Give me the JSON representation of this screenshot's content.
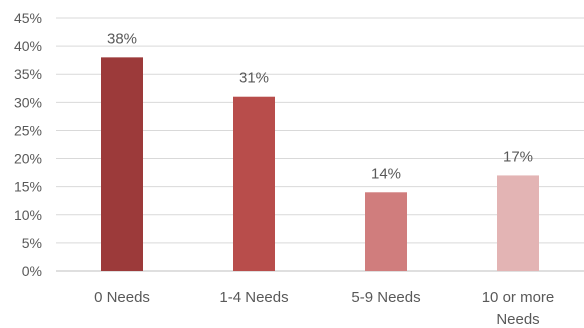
{
  "chart_data": {
    "type": "bar",
    "title": "",
    "xlabel": "",
    "ylabel": "",
    "categories": [
      "0 Needs",
      "1-4 Needs",
      "5-9 Needs",
      "10 or more Needs"
    ],
    "values": [
      38,
      31,
      14,
      17
    ],
    "data_labels": [
      "38%",
      "31%",
      "14%",
      "17%"
    ],
    "ylim": [
      0,
      45
    ],
    "yticks": [
      0,
      5,
      10,
      15,
      20,
      25,
      30,
      35,
      40,
      45
    ],
    "ytick_labels": [
      "0%",
      "5%",
      "10%",
      "15%",
      "20%",
      "25%",
      "30%",
      "35%",
      "40%",
      "45%"
    ],
    "grid": true,
    "legend": "none",
    "colors": [
      "#9c3a3a",
      "#b84d4b",
      "#d07d7d",
      "#e3b4b4"
    ]
  }
}
